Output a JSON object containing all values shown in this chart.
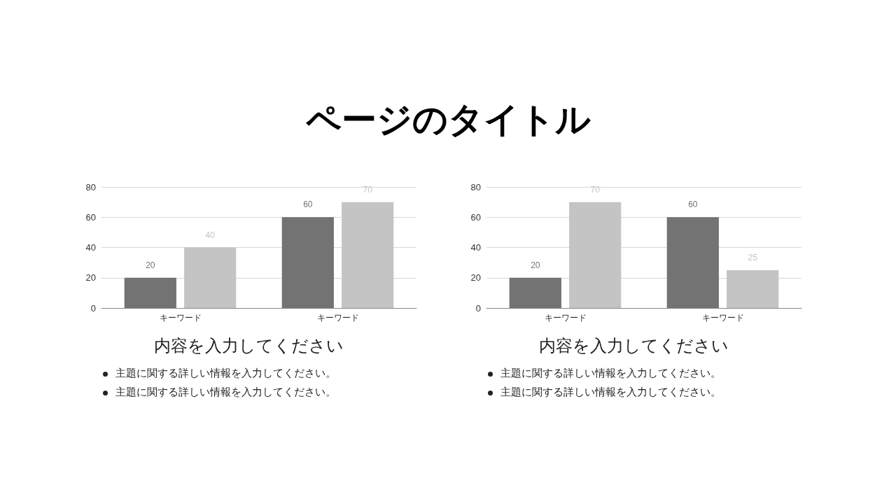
{
  "chart_data": [
    {
      "type": "bar",
      "title": "ページのタイトル",
      "subtitle": "内容を入力してください",
      "categories": [
        "キーワード",
        "キーワード"
      ],
      "series": [
        {
          "color": "#737373",
          "values": [
            20,
            60
          ]
        },
        {
          "color": "#c4c4c4",
          "values": [
            40,
            70
          ]
        }
      ],
      "ylim": [
        0,
        80
      ],
      "yticks": [
        0,
        20,
        40,
        60,
        80
      ],
      "grid": "y",
      "data_labels": true,
      "annotations": [
        "主題に関する詳しい情報を入力してください。",
        "主題に関する詳しい情報を入力してください。"
      ]
    },
    {
      "type": "bar",
      "subtitle": "内容を入力してください",
      "categories": [
        "キーワード",
        "キーワード"
      ],
      "series": [
        {
          "color": "#737373",
          "values": [
            20,
            60
          ]
        },
        {
          "color": "#c4c4c4",
          "values": [
            70,
            25
          ]
        }
      ],
      "ylim": [
        0,
        80
      ],
      "yticks": [
        0,
        20,
        40,
        60,
        80
      ],
      "grid": "y",
      "data_labels": true,
      "annotations": [
        "主題に関する詳しい情報を入力してください。",
        "主題に関する詳しい情報を入力してください。"
      ]
    }
  ]
}
